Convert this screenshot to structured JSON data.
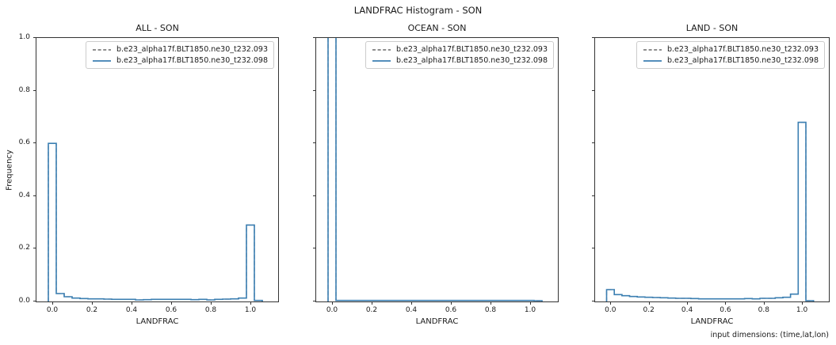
{
  "figure": {
    "suptitle": "LANDFRAC Histogram - SON",
    "footer_note": "input dimensions: (time,lat,lon)",
    "background": "#ffffff"
  },
  "colors": {
    "series_093": "#7f7f7f",
    "series_098": "#3b7fb2",
    "spine": "#333333",
    "text": "#1a1a1a",
    "legend_border": "#cccccc"
  },
  "legend": {
    "position": "upper right",
    "entries": [
      {
        "label": "b.e23_alpha17f.BLT1850.ne30_t232.093",
        "linestyle": "dashed",
        "color": "#7f7f7f"
      },
      {
        "label": "b.e23_alpha17f.BLT1850.ne30_t232.098",
        "linestyle": "solid",
        "color": "#3b7fb2"
      }
    ]
  },
  "chart_data": [
    {
      "type": "histogram-step",
      "title": "ALL - SON",
      "xlabel": "LANDFRAC",
      "ylabel": "Frequency",
      "xlim": [
        -0.08,
        1.14
      ],
      "ylim": [
        0,
        1.0
      ],
      "xticks": [
        0.0,
        0.2,
        0.4,
        0.6,
        0.8,
        1.0
      ],
      "yticks": [
        0.0,
        0.2,
        0.4,
        0.6,
        0.8,
        1.0
      ],
      "ytick_labels_visible": true,
      "grid": false,
      "legend_position": "upper right",
      "bin_edges": [
        -0.02,
        0.02,
        0.06,
        0.1,
        0.14,
        0.18,
        0.22,
        0.26,
        0.3,
        0.34,
        0.38,
        0.42,
        0.46,
        0.5,
        0.54,
        0.58,
        0.62,
        0.66,
        0.7,
        0.74,
        0.78,
        0.82,
        0.86,
        0.9,
        0.94,
        0.98,
        1.02,
        1.06
      ],
      "series": [
        {
          "name": "b.e23_alpha17f.BLT1850.ne30_t232.093",
          "linestyle": "dashed",
          "color": "#7f7f7f",
          "values": [
            0.6,
            0.03,
            0.018,
            0.013,
            0.011,
            0.01,
            0.01,
            0.009,
            0.008,
            0.008,
            0.008,
            0.006,
            0.007,
            0.008,
            0.008,
            0.008,
            0.008,
            0.008,
            0.007,
            0.008,
            0.006,
            0.008,
            0.009,
            0.01,
            0.013,
            0.29,
            0.004
          ]
        },
        {
          "name": "b.e23_alpha17f.BLT1850.ne30_t232.098",
          "linestyle": "solid",
          "color": "#3b7fb2",
          "values": [
            0.6,
            0.03,
            0.018,
            0.013,
            0.011,
            0.01,
            0.01,
            0.009,
            0.008,
            0.008,
            0.008,
            0.006,
            0.007,
            0.008,
            0.008,
            0.008,
            0.008,
            0.008,
            0.007,
            0.008,
            0.006,
            0.008,
            0.009,
            0.01,
            0.013,
            0.29,
            0.004
          ]
        }
      ]
    },
    {
      "type": "histogram-step",
      "title": "OCEAN - SON",
      "xlabel": "LANDFRAC",
      "ylabel": "",
      "xlim": [
        -0.08,
        1.14
      ],
      "ylim": [
        0,
        1.0
      ],
      "xticks": [
        0.0,
        0.2,
        0.4,
        0.6,
        0.8,
        1.0
      ],
      "yticks": [
        0.0,
        0.2,
        0.4,
        0.6,
        0.8,
        1.0
      ],
      "ytick_labels_visible": false,
      "grid": false,
      "legend_position": "upper right",
      "bin_edges": [
        -0.02,
        0.02,
        0.06,
        0.1,
        0.14,
        0.18,
        0.22,
        0.26,
        0.3,
        0.34,
        0.38,
        0.42,
        0.46,
        0.5,
        0.54,
        0.58,
        0.62,
        0.66,
        0.7,
        0.74,
        0.78,
        0.82,
        0.86,
        0.9,
        0.94,
        0.98,
        1.02,
        1.06
      ],
      "series": [
        {
          "name": "b.e23_alpha17f.BLT1850.ne30_t232.093",
          "linestyle": "dashed",
          "color": "#7f7f7f",
          "values": [
            1.0,
            0.004,
            0.004,
            0.004,
            0.004,
            0.004,
            0.004,
            0.004,
            0.004,
            0.004,
            0.004,
            0.004,
            0.004,
            0.004,
            0.004,
            0.004,
            0.004,
            0.004,
            0.004,
            0.004,
            0.004,
            0.004,
            0.004,
            0.004,
            0.004,
            0.004,
            0.003
          ]
        },
        {
          "name": "b.e23_alpha17f.BLT1850.ne30_t232.098",
          "linestyle": "solid",
          "color": "#3b7fb2",
          "values": [
            1.0,
            0.004,
            0.004,
            0.004,
            0.004,
            0.004,
            0.004,
            0.004,
            0.004,
            0.004,
            0.004,
            0.004,
            0.004,
            0.004,
            0.004,
            0.004,
            0.004,
            0.004,
            0.004,
            0.004,
            0.004,
            0.004,
            0.004,
            0.004,
            0.004,
            0.004,
            0.003
          ]
        }
      ]
    },
    {
      "type": "histogram-step",
      "title": "LAND - SON",
      "xlabel": "LANDFRAC",
      "ylabel": "",
      "xlim": [
        -0.08,
        1.14
      ],
      "ylim": [
        0,
        1.0
      ],
      "xticks": [
        0.0,
        0.2,
        0.4,
        0.6,
        0.8,
        1.0
      ],
      "yticks": [
        0.0,
        0.2,
        0.4,
        0.6,
        0.8,
        1.0
      ],
      "ytick_labels_visible": false,
      "grid": false,
      "legend_position": "upper right",
      "bin_edges": [
        -0.02,
        0.02,
        0.06,
        0.1,
        0.14,
        0.18,
        0.22,
        0.26,
        0.3,
        0.34,
        0.38,
        0.42,
        0.46,
        0.5,
        0.54,
        0.58,
        0.62,
        0.66,
        0.7,
        0.74,
        0.78,
        0.82,
        0.86,
        0.9,
        0.94,
        0.98,
        1.02,
        1.06
      ],
      "series": [
        {
          "name": "b.e23_alpha17f.BLT1850.ne30_t232.093",
          "linestyle": "dashed",
          "color": "#7f7f7f",
          "values": [
            0.045,
            0.026,
            0.022,
            0.019,
            0.017,
            0.016,
            0.015,
            0.014,
            0.013,
            0.012,
            0.012,
            0.011,
            0.01,
            0.01,
            0.01,
            0.01,
            0.01,
            0.01,
            0.011,
            0.01,
            0.012,
            0.012,
            0.014,
            0.016,
            0.028,
            0.68,
            0.003
          ]
        },
        {
          "name": "b.e23_alpha17f.BLT1850.ne30_t232.098",
          "linestyle": "solid",
          "color": "#3b7fb2",
          "values": [
            0.045,
            0.026,
            0.022,
            0.019,
            0.017,
            0.016,
            0.015,
            0.014,
            0.013,
            0.012,
            0.012,
            0.011,
            0.01,
            0.01,
            0.01,
            0.01,
            0.01,
            0.01,
            0.011,
            0.01,
            0.012,
            0.012,
            0.014,
            0.016,
            0.028,
            0.68,
            0.003
          ]
        }
      ]
    }
  ]
}
